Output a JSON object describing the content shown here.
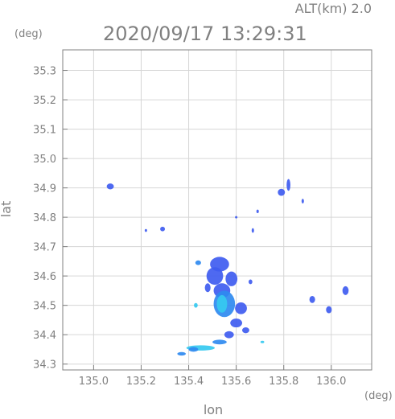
{
  "chart_data": {
    "type": "scatter",
    "title": "2020/09/17 13:29:31",
    "subtitle": "ALT(km) 2.0",
    "xlabel": "lon",
    "ylabel": "lat",
    "x_unit": "(deg)",
    "y_unit": "(deg)",
    "xlim": [
      134.87,
      136.17
    ],
    "ylim": [
      34.28,
      35.37
    ],
    "xticks": [
      "135.0",
      "135.2",
      "135.4",
      "135.6",
      "135.8",
      "136.0"
    ],
    "xtick_values": [
      135.0,
      135.2,
      135.4,
      135.6,
      135.8,
      136.0
    ],
    "yticks": [
      "34.3",
      "34.4",
      "34.5",
      "34.6",
      "34.7",
      "34.8",
      "34.9",
      "35.0",
      "35.1",
      "35.2",
      "35.3"
    ],
    "ytick_values": [
      34.3,
      34.4,
      34.5,
      34.6,
      34.7,
      34.8,
      34.9,
      35.0,
      35.1,
      35.2,
      35.3
    ],
    "grid": true,
    "colors": {
      "axis": "#808080",
      "grid": "#d6d6d6",
      "echo_weak": "#3f5cf0",
      "echo_mid": "#2f8af0",
      "echo_light": "#35c9f0",
      "echo_dark": "#2a3bd8"
    },
    "echoes": [
      {
        "lon": 135.07,
        "lat": 34.905,
        "rx": 0.015,
        "ry": 0.01,
        "level": "weak"
      },
      {
        "lon": 135.29,
        "lat": 34.76,
        "rx": 0.01,
        "ry": 0.008,
        "level": "weak"
      },
      {
        "lon": 135.22,
        "lat": 34.755,
        "rx": 0.005,
        "ry": 0.005,
        "level": "weak"
      },
      {
        "lon": 135.6,
        "lat": 34.8,
        "rx": 0.004,
        "ry": 0.004,
        "level": "weak"
      },
      {
        "lon": 135.67,
        "lat": 34.755,
        "rx": 0.005,
        "ry": 0.008,
        "level": "weak"
      },
      {
        "lon": 135.69,
        "lat": 34.82,
        "rx": 0.004,
        "ry": 0.006,
        "level": "weak"
      },
      {
        "lon": 135.79,
        "lat": 34.885,
        "rx": 0.015,
        "ry": 0.012,
        "level": "weak"
      },
      {
        "lon": 135.82,
        "lat": 34.91,
        "rx": 0.008,
        "ry": 0.02,
        "level": "weak"
      },
      {
        "lon": 135.88,
        "lat": 34.855,
        "rx": 0.004,
        "ry": 0.008,
        "level": "weak"
      },
      {
        "lon": 135.53,
        "lat": 34.64,
        "rx": 0.04,
        "ry": 0.025,
        "level": "weak"
      },
      {
        "lon": 135.44,
        "lat": 34.645,
        "rx": 0.012,
        "ry": 0.008,
        "level": "mid"
      },
      {
        "lon": 135.51,
        "lat": 34.6,
        "rx": 0.035,
        "ry": 0.03,
        "level": "weak"
      },
      {
        "lon": 135.58,
        "lat": 34.59,
        "rx": 0.025,
        "ry": 0.025,
        "level": "weak"
      },
      {
        "lon": 135.54,
        "lat": 34.55,
        "rx": 0.035,
        "ry": 0.025,
        "level": "weak"
      },
      {
        "lon": 135.55,
        "lat": 34.505,
        "rx": 0.045,
        "ry": 0.045,
        "level": "mid"
      },
      {
        "lon": 135.54,
        "lat": 34.505,
        "rx": 0.022,
        "ry": 0.03,
        "level": "light"
      },
      {
        "lon": 135.48,
        "lat": 34.56,
        "rx": 0.012,
        "ry": 0.015,
        "level": "weak"
      },
      {
        "lon": 135.43,
        "lat": 34.5,
        "rx": 0.008,
        "ry": 0.008,
        "level": "light"
      },
      {
        "lon": 135.62,
        "lat": 34.49,
        "rx": 0.025,
        "ry": 0.02,
        "level": "weak"
      },
      {
        "lon": 135.66,
        "lat": 34.58,
        "rx": 0.008,
        "ry": 0.008,
        "level": "weak"
      },
      {
        "lon": 135.6,
        "lat": 34.44,
        "rx": 0.025,
        "ry": 0.015,
        "level": "weak"
      },
      {
        "lon": 135.64,
        "lat": 34.415,
        "rx": 0.015,
        "ry": 0.01,
        "level": "weak"
      },
      {
        "lon": 135.57,
        "lat": 34.4,
        "rx": 0.02,
        "ry": 0.012,
        "level": "weak"
      },
      {
        "lon": 135.53,
        "lat": 34.375,
        "rx": 0.03,
        "ry": 0.008,
        "level": "mid"
      },
      {
        "lon": 135.45,
        "lat": 34.355,
        "rx": 0.06,
        "ry": 0.009,
        "level": "light"
      },
      {
        "lon": 135.42,
        "lat": 34.35,
        "rx": 0.02,
        "ry": 0.008,
        "level": "mid"
      },
      {
        "lon": 135.37,
        "lat": 34.335,
        "rx": 0.018,
        "ry": 0.006,
        "level": "mid"
      },
      {
        "lon": 135.71,
        "lat": 34.375,
        "rx": 0.008,
        "ry": 0.004,
        "level": "light"
      },
      {
        "lon": 135.92,
        "lat": 34.52,
        "rx": 0.012,
        "ry": 0.012,
        "level": "weak"
      },
      {
        "lon": 135.99,
        "lat": 34.485,
        "rx": 0.012,
        "ry": 0.012,
        "level": "weak"
      },
      {
        "lon": 136.06,
        "lat": 34.55,
        "rx": 0.013,
        "ry": 0.015,
        "level": "weak"
      }
    ]
  }
}
